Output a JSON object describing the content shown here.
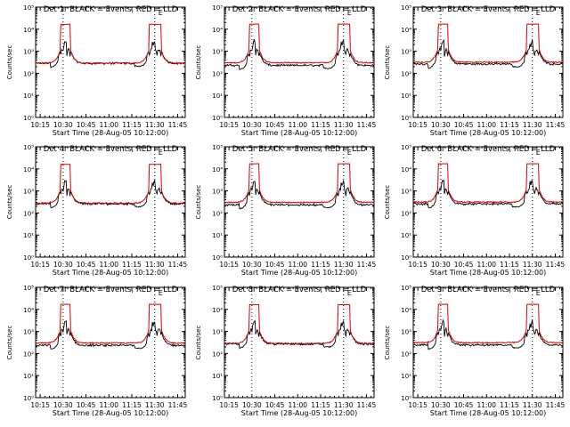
{
  "figure": {
    "background": "#ffffff",
    "axis_color": "#000000",
    "events_color": "#000000",
    "lld_color": "#d40000"
  },
  "chart_data": {
    "type": "line",
    "grid_layout": "3x3",
    "x_axis": {
      "label": "Start Time (28-Aug-05 10:12:00)",
      "ticks": [
        "10:15",
        "10:30",
        "10:45",
        "11:00",
        "11:15",
        "11:30",
        "11:45"
      ],
      "range_minutes_after_start": [
        0,
        98
      ]
    },
    "y_axis": {
      "label": "Counts/sec",
      "scale": "log",
      "ticks": [
        "10⁰",
        "10¹",
        "10²",
        "10³",
        "10⁴",
        "10⁵"
      ],
      "range": [
        1,
        100000
      ]
    },
    "vertical_markers_time": [
      "10:30",
      "11:30"
    ],
    "marker_label": "E",
    "series_legend": {
      "events": "BLACK = Events",
      "lld": "RED = LLD"
    },
    "panels": [
      {
        "title": "Det 1r  BLACK = Events, RED = LLD",
        "baseline": 290,
        "events_offset": 1.0,
        "lld_top": 16500
      },
      {
        "title": "Det 2r  BLACK = Events, RED = LLD",
        "baseline": 300,
        "events_offset": 0.78,
        "lld_top": 17000
      },
      {
        "title": "Det 3r  BLACK = Events, RED = LLD",
        "baseline": 320,
        "events_offset": 0.85,
        "lld_top": 17000
      },
      {
        "title": "Det 4r  BLACK = Events, RED = LLD",
        "baseline": 280,
        "events_offset": 0.95,
        "lld_top": 16000
      },
      {
        "title": "Det 5r  BLACK = Events, RED = LLD",
        "baseline": 300,
        "events_offset": 0.8,
        "lld_top": 17000
      },
      {
        "title": "Det 6r  BLACK = Events, RED = LLD",
        "baseline": 310,
        "events_offset": 0.85,
        "lld_top": 17000
      },
      {
        "title": "Det 7r  BLACK = Events, RED = LLD",
        "baseline": 300,
        "events_offset": 0.8,
        "lld_top": 17000
      },
      {
        "title": "Det 8r  BLACK = Events, RED = LLD",
        "baseline": 290,
        "events_offset": 0.95,
        "lld_top": 16500
      },
      {
        "title": "Det 9r  BLACK = Events, RED = LLD",
        "baseline": 310,
        "events_offset": 0.8,
        "lld_top": 17000
      }
    ]
  }
}
